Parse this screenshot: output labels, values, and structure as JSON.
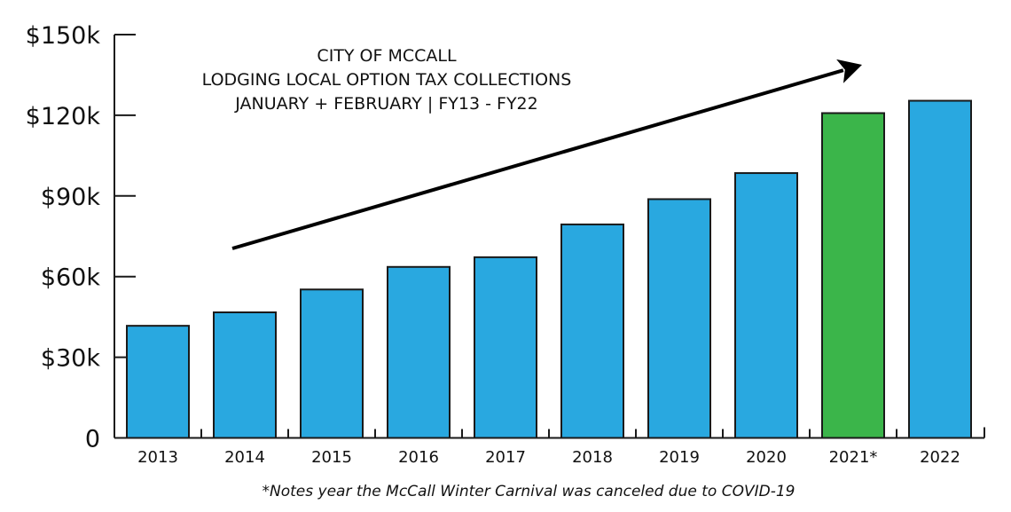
{
  "title": {
    "lines": [
      "CITY OF MCCALL",
      "LODGING LOCAL OPTION TAX COLLECTIONS",
      "JANUARY + FEBRUARY | FY13 - FY22"
    ]
  },
  "footnote": "*Notes year the McCall Winter Carnival was canceled due to COVID-19",
  "colors": {
    "bar_default": "#29A8E0",
    "bar_highlight": "#3BB54A",
    "axis": "#1a1a1a",
    "arrow": "#000000"
  },
  "annotation": {
    "type": "trend-arrow",
    "from": [
      262,
      280
    ],
    "to": [
      972,
      73
    ]
  },
  "chart_data": {
    "type": "bar",
    "title": "CITY OF MCCALL LODGING LOCAL OPTION TAX COLLECTIONS JANUARY + FEBRUARY | FY13 - FY22",
    "xlabel": "",
    "ylabel": "",
    "categories": [
      "2013",
      "2014",
      "2015",
      "2016",
      "2017",
      "2018",
      "2019",
      "2020",
      "2021*",
      "2022"
    ],
    "values": [
      41700,
      46700,
      55200,
      63600,
      67200,
      79400,
      88800,
      98500,
      120800,
      125400
    ],
    "highlight": [
      "2021*"
    ],
    "ylim": [
      0,
      150000
    ],
    "yticks": [
      0,
      30000,
      60000,
      90000,
      120000,
      150000
    ],
    "ytick_labels": [
      "0",
      "$30k",
      "$60k",
      "$90k",
      "$120k",
      "$150k"
    ],
    "grid": false,
    "legend": null,
    "annotations": [
      "Upward trend arrow from 2014 to 2021",
      "*Notes year the McCall Winter Carnival was canceled due to COVID-19"
    ]
  }
}
